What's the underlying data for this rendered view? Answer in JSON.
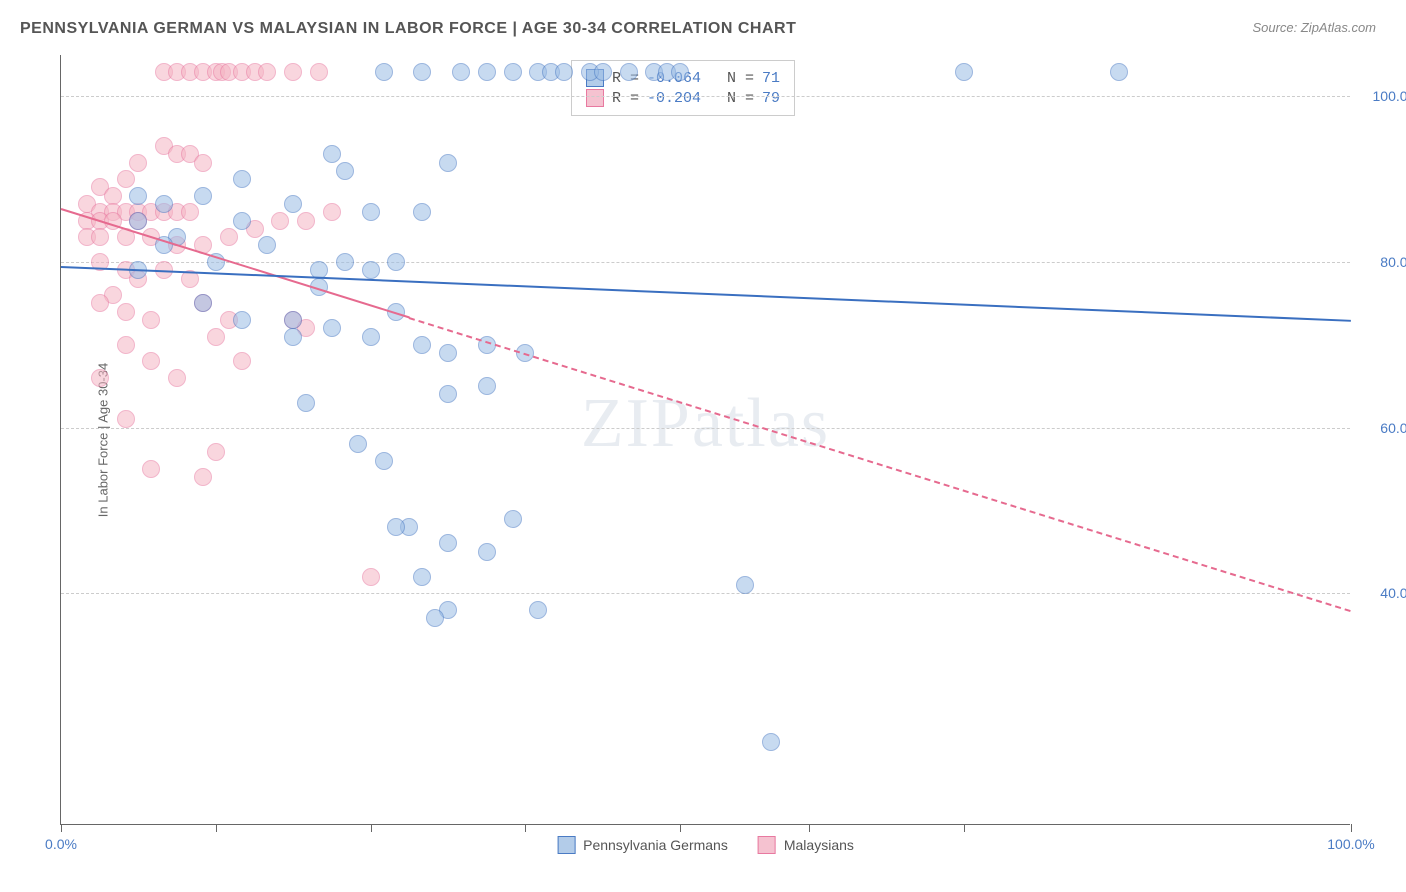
{
  "title": "PENNSYLVANIA GERMAN VS MALAYSIAN IN LABOR FORCE | AGE 30-34 CORRELATION CHART",
  "source": "Source: ZipAtlas.com",
  "watermark": "ZIPatlas",
  "y_axis_title": "In Labor Force | Age 30-34",
  "chart": {
    "type": "scatter",
    "xlim": [
      0,
      100
    ],
    "ylim": [
      12,
      105
    ],
    "x_ticks": [
      0,
      12,
      24,
      36,
      48,
      58,
      70,
      100
    ],
    "x_tick_labels": {
      "0": "0.0%",
      "100": "100.0%"
    },
    "y_gridlines": [
      40,
      60,
      80,
      100
    ],
    "y_tick_labels": {
      "40": "40.0%",
      "60": "60.0%",
      "80": "80.0%",
      "100": "100.0%"
    },
    "background_color": "#ffffff",
    "grid_color": "#cccccc",
    "axis_label_color": "#4a7bc4",
    "marker_radius": 9
  },
  "series_a": {
    "name": "Pennsylvania Germans",
    "color_fill": "#9abce5",
    "color_stroke": "#4a7bc4",
    "R": "-0.064",
    "N": "71",
    "trend": {
      "x1": 0,
      "y1": 79.5,
      "x2": 100,
      "y2": 73,
      "solid_to_x": 100,
      "width": 2.5,
      "color": "#3a6fc0"
    },
    "points": [
      [
        25,
        103
      ],
      [
        28,
        103
      ],
      [
        31,
        103
      ],
      [
        33,
        103
      ],
      [
        35,
        103
      ],
      [
        37,
        103
      ],
      [
        38,
        103
      ],
      [
        39,
        103
      ],
      [
        41,
        103
      ],
      [
        42,
        103
      ],
      [
        44,
        103
      ],
      [
        46,
        103
      ],
      [
        47,
        103
      ],
      [
        48,
        103
      ],
      [
        70,
        103
      ],
      [
        82,
        103
      ],
      [
        6,
        88
      ],
      [
        14,
        90
      ],
      [
        21,
        93
      ],
      [
        22,
        91
      ],
      [
        30,
        92
      ],
      [
        28,
        86
      ],
      [
        24,
        86
      ],
      [
        11,
        88
      ],
      [
        8,
        87
      ],
      [
        6,
        85
      ],
      [
        9,
        83
      ],
      [
        8,
        82
      ],
      [
        14,
        85
      ],
      [
        18,
        87
      ],
      [
        12,
        80
      ],
      [
        6,
        79
      ],
      [
        16,
        82
      ],
      [
        20,
        79
      ],
      [
        22,
        80
      ],
      [
        20,
        77
      ],
      [
        24,
        79
      ],
      [
        26,
        80
      ],
      [
        11,
        75
      ],
      [
        14,
        73
      ],
      [
        18,
        73
      ],
      [
        18,
        71
      ],
      [
        21,
        72
      ],
      [
        24,
        71
      ],
      [
        26,
        74
      ],
      [
        28,
        70
      ],
      [
        30,
        69
      ],
      [
        33,
        70
      ],
      [
        36,
        69
      ],
      [
        33,
        65
      ],
      [
        30,
        64
      ],
      [
        19,
        63
      ],
      [
        23,
        58
      ],
      [
        25,
        56
      ],
      [
        27,
        48
      ],
      [
        26,
        48
      ],
      [
        35,
        49
      ],
      [
        30,
        46
      ],
      [
        33,
        45
      ],
      [
        28,
        42
      ],
      [
        30,
        38
      ],
      [
        29,
        37
      ],
      [
        37,
        38
      ],
      [
        53,
        41
      ],
      [
        55,
        22
      ]
    ]
  },
  "series_b": {
    "name": "Malaysians",
    "color_fill": "#f5b5c4",
    "color_stroke": "#e879a0",
    "R": "-0.204",
    "N": "79",
    "trend": {
      "x1": 0,
      "y1": 86.5,
      "x2": 100,
      "y2": 38,
      "solid_to_x": 27,
      "width": 2.5,
      "color": "#e66a8f"
    },
    "points": [
      [
        8,
        103
      ],
      [
        9,
        103
      ],
      [
        10,
        103
      ],
      [
        11,
        103
      ],
      [
        12,
        103
      ],
      [
        12.5,
        103
      ],
      [
        13,
        103
      ],
      [
        14,
        103
      ],
      [
        15,
        103
      ],
      [
        16,
        103
      ],
      [
        18,
        103
      ],
      [
        20,
        103
      ],
      [
        8,
        94
      ],
      [
        9,
        93
      ],
      [
        10,
        93
      ],
      [
        11,
        92
      ],
      [
        6,
        92
      ],
      [
        5,
        90
      ],
      [
        3,
        89
      ],
      [
        4,
        88
      ],
      [
        2,
        87
      ],
      [
        3,
        86
      ],
      [
        4,
        86
      ],
      [
        5,
        86
      ],
      [
        6,
        86
      ],
      [
        7,
        86
      ],
      [
        8,
        86
      ],
      [
        9,
        86
      ],
      [
        10,
        86
      ],
      [
        2,
        85
      ],
      [
        3,
        85
      ],
      [
        4,
        85
      ],
      [
        6,
        85
      ],
      [
        2,
        83
      ],
      [
        3,
        83
      ],
      [
        5,
        83
      ],
      [
        7,
        83
      ],
      [
        9,
        82
      ],
      [
        11,
        82
      ],
      [
        13,
        83
      ],
      [
        15,
        84
      ],
      [
        17,
        85
      ],
      [
        19,
        85
      ],
      [
        21,
        86
      ],
      [
        3,
        80
      ],
      [
        5,
        79
      ],
      [
        6,
        78
      ],
      [
        8,
        79
      ],
      [
        10,
        78
      ],
      [
        4,
        76
      ],
      [
        3,
        75
      ],
      [
        5,
        74
      ],
      [
        7,
        73
      ],
      [
        11,
        75
      ],
      [
        13,
        73
      ],
      [
        12,
        71
      ],
      [
        18,
        73
      ],
      [
        19,
        72
      ],
      [
        5,
        70
      ],
      [
        7,
        68
      ],
      [
        3,
        66
      ],
      [
        9,
        66
      ],
      [
        14,
        68
      ],
      [
        5,
        61
      ],
      [
        12,
        57
      ],
      [
        7,
        55
      ],
      [
        11,
        54
      ],
      [
        24,
        42
      ]
    ]
  },
  "legend": {
    "r_label": "R = ",
    "n_label": "N = "
  }
}
